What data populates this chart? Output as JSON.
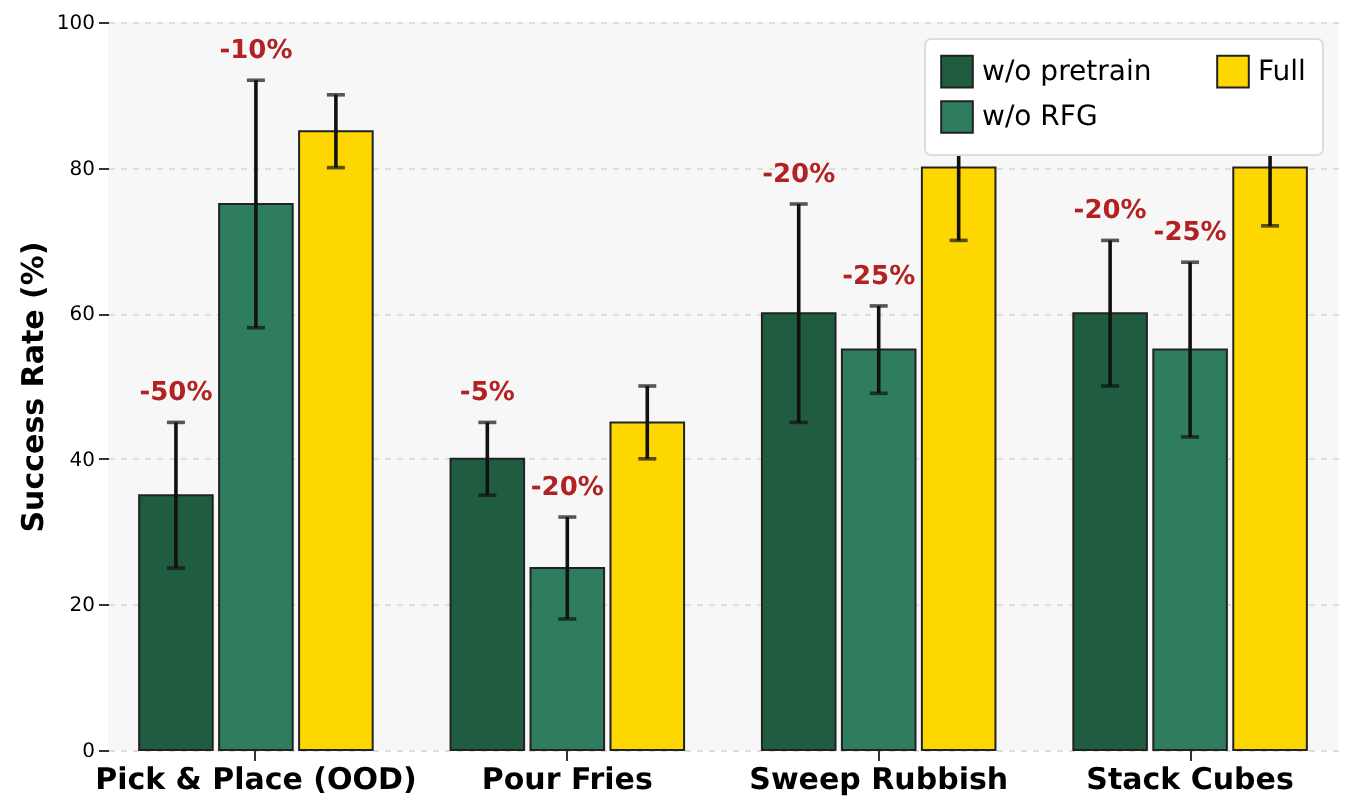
{
  "chart_data": {
    "type": "bar",
    "ylabel": "Success Rate (%)",
    "categories": [
      "Pick & Place (OOD)",
      "Pour Fries",
      "Sweep Rubbish",
      "Stack Cubes"
    ],
    "series": [
      {
        "name": "w/o pretrain",
        "color": "#1f5c40",
        "values": [
          35,
          40,
          60,
          60
        ],
        "errors": [
          10,
          5,
          15,
          10
        ]
      },
      {
        "name": "w/o RFG",
        "color": "#2e7d5f",
        "values": [
          75,
          25,
          55,
          55
        ],
        "errors": [
          17,
          7,
          6,
          12
        ]
      },
      {
        "name": "Full",
        "color": "#ffd700",
        "values": [
          85,
          45,
          80,
          80
        ],
        "errors": [
          5,
          5,
          10,
          8
        ]
      }
    ],
    "annotations": [
      "-50%",
      "-10%",
      "-5%",
      "-20%",
      "-20%",
      "-25%",
      "-20%",
      "-25%"
    ],
    "ylim": [
      0,
      100
    ],
    "yticks": [
      0,
      20,
      40,
      60,
      80,
      100
    ],
    "grid": "y",
    "legend": "top right"
  }
}
